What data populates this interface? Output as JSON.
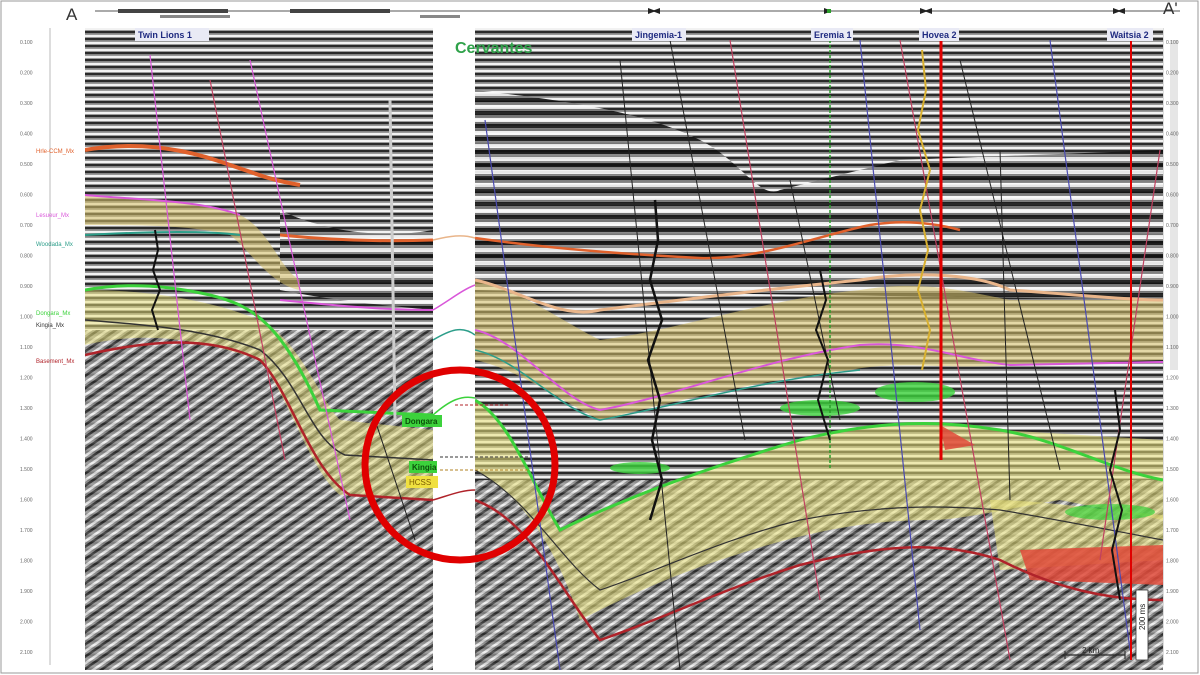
{
  "section": {
    "start_label": "A",
    "end_label": "A'",
    "prospect_label": "Cervantes"
  },
  "wells": [
    {
      "name": "Twin Lions 1"
    },
    {
      "name": "Jingemia-1"
    },
    {
      "name": "Eremia 1"
    },
    {
      "name": "Hovea 2"
    },
    {
      "name": "Waitsia 2"
    }
  ],
  "horizons": [
    {
      "name": "Hrle-CCM_Mx",
      "color": "#e0612c"
    },
    {
      "name": "Lesueur_Mx",
      "color": "#d957d9"
    },
    {
      "name": "Woodada_Mx",
      "color": "#2d9e8a"
    },
    {
      "name": "Dongara_Mx",
      "color": "#3cd23c"
    },
    {
      "name": "Kingia_Mx",
      "color": "#333333"
    },
    {
      "name": "Basement_Mx",
      "color": "#b0232a"
    }
  ],
  "zone_labels": {
    "dongara": "Dongara",
    "kingia": "Kingia",
    "hcss": "HCSS"
  },
  "depth_axis": {
    "ticks": [
      "0.100",
      "0.200",
      "0.300",
      "0.400",
      "0.500",
      "0.600",
      "0.700",
      "0.800",
      "0.900",
      "1.000",
      "1.100",
      "1.200",
      "1.300",
      "1.400",
      "1.500",
      "1.600",
      "1.700",
      "1.800",
      "1.900",
      "2.000",
      "2.100"
    ]
  },
  "scale": {
    "horizontal": "2 km",
    "vertical": "200 ms"
  },
  "highlight": {
    "color": "#e00000"
  }
}
